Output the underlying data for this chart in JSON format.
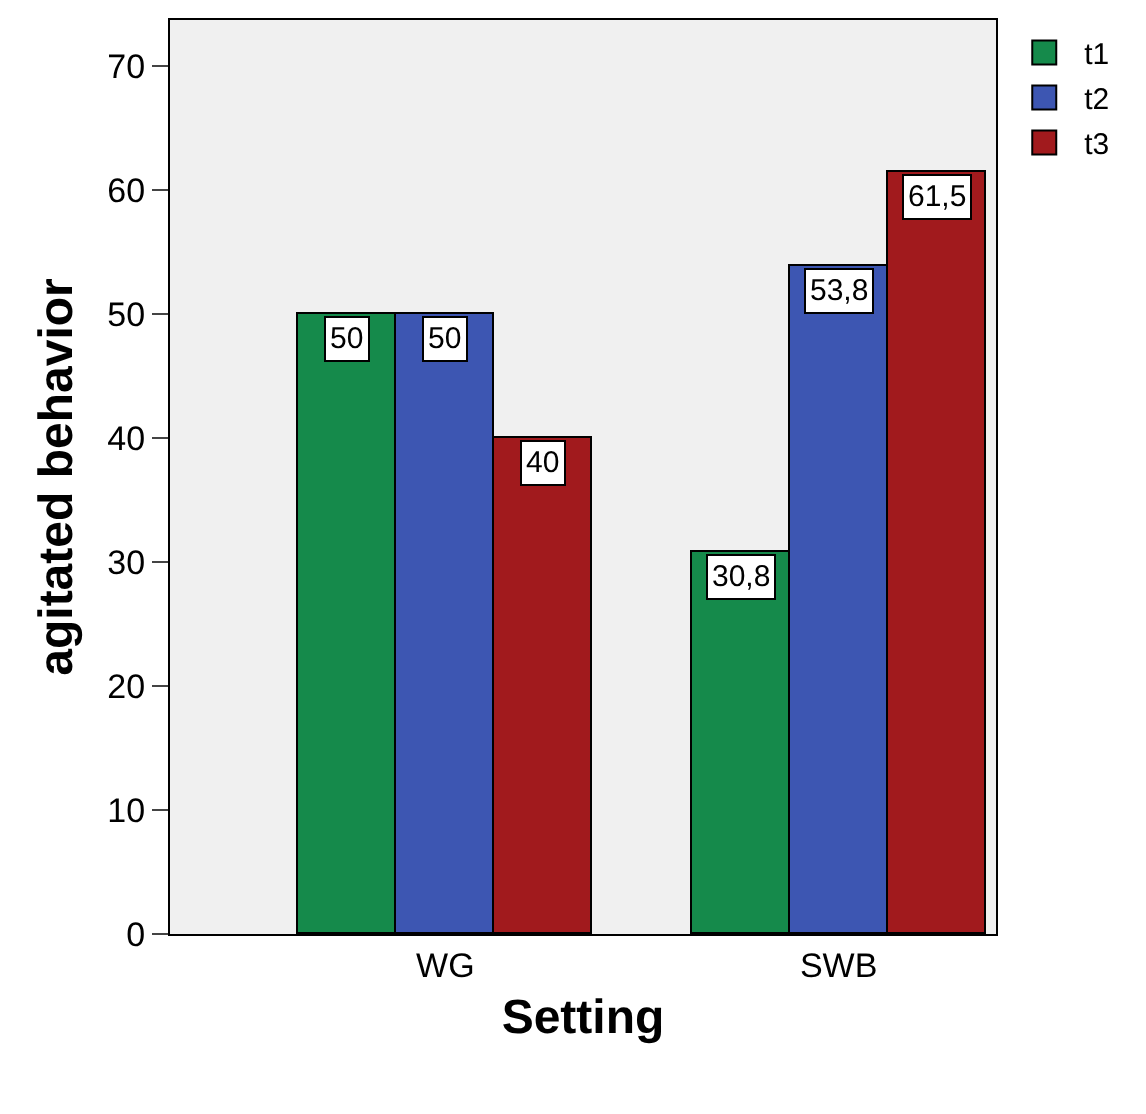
{
  "chart_data": {
    "type": "bar",
    "xlabel": "Setting",
    "ylabel": "agitated behavior",
    "categories": [
      "WG",
      "SWB"
    ],
    "series": [
      {
        "name": "t1",
        "color": "#158a4b",
        "values": [
          50,
          30.8
        ],
        "value_labels": [
          "50",
          "30,8"
        ]
      },
      {
        "name": "t2",
        "color": "#3d56b2",
        "values": [
          50,
          53.8
        ],
        "value_labels": [
          "50",
          "53,8"
        ]
      },
      {
        "name": "t3",
        "color": "#a11a1d",
        "values": [
          40,
          61.5
        ],
        "value_labels": [
          "40",
          "61,5"
        ]
      }
    ],
    "ylim": [
      0,
      73.7
    ],
    "yticks": [
      0,
      10,
      20,
      30,
      40,
      50,
      60,
      70
    ],
    "grid": false,
    "legend": "top right"
  }
}
